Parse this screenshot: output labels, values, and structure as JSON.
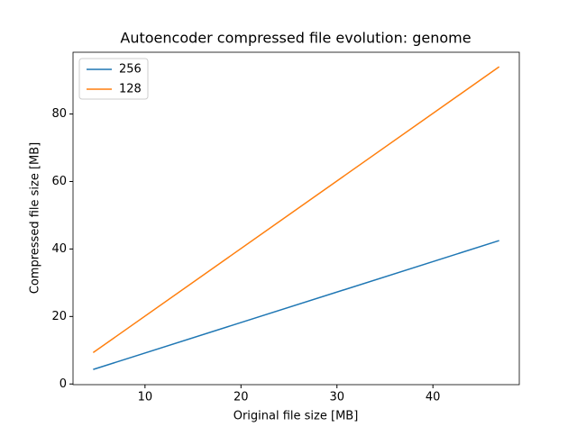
{
  "chart_data": {
    "type": "line",
    "title": "Autoencoder compressed file evolution: genome",
    "x_label": "Original file size [MB]",
    "y_label": "Compressed file size [MB]",
    "x": [
      4.6,
      46.9
    ],
    "series": [
      {
        "name": "256",
        "color": "#1f77b4",
        "values": [
          4.3,
          42.5
        ]
      },
      {
        "name": "128",
        "color": "#ff7f0e",
        "values": [
          9.3,
          94.0
        ]
      }
    ],
    "xlim": [
      2.5,
      49.0
    ],
    "ylim": [
      -0.2,
      98.3
    ],
    "xticks": [
      10,
      20,
      30,
      40
    ],
    "yticks": [
      0,
      20,
      40,
      60,
      80
    ],
    "grid": false,
    "legend": "upper left"
  }
}
